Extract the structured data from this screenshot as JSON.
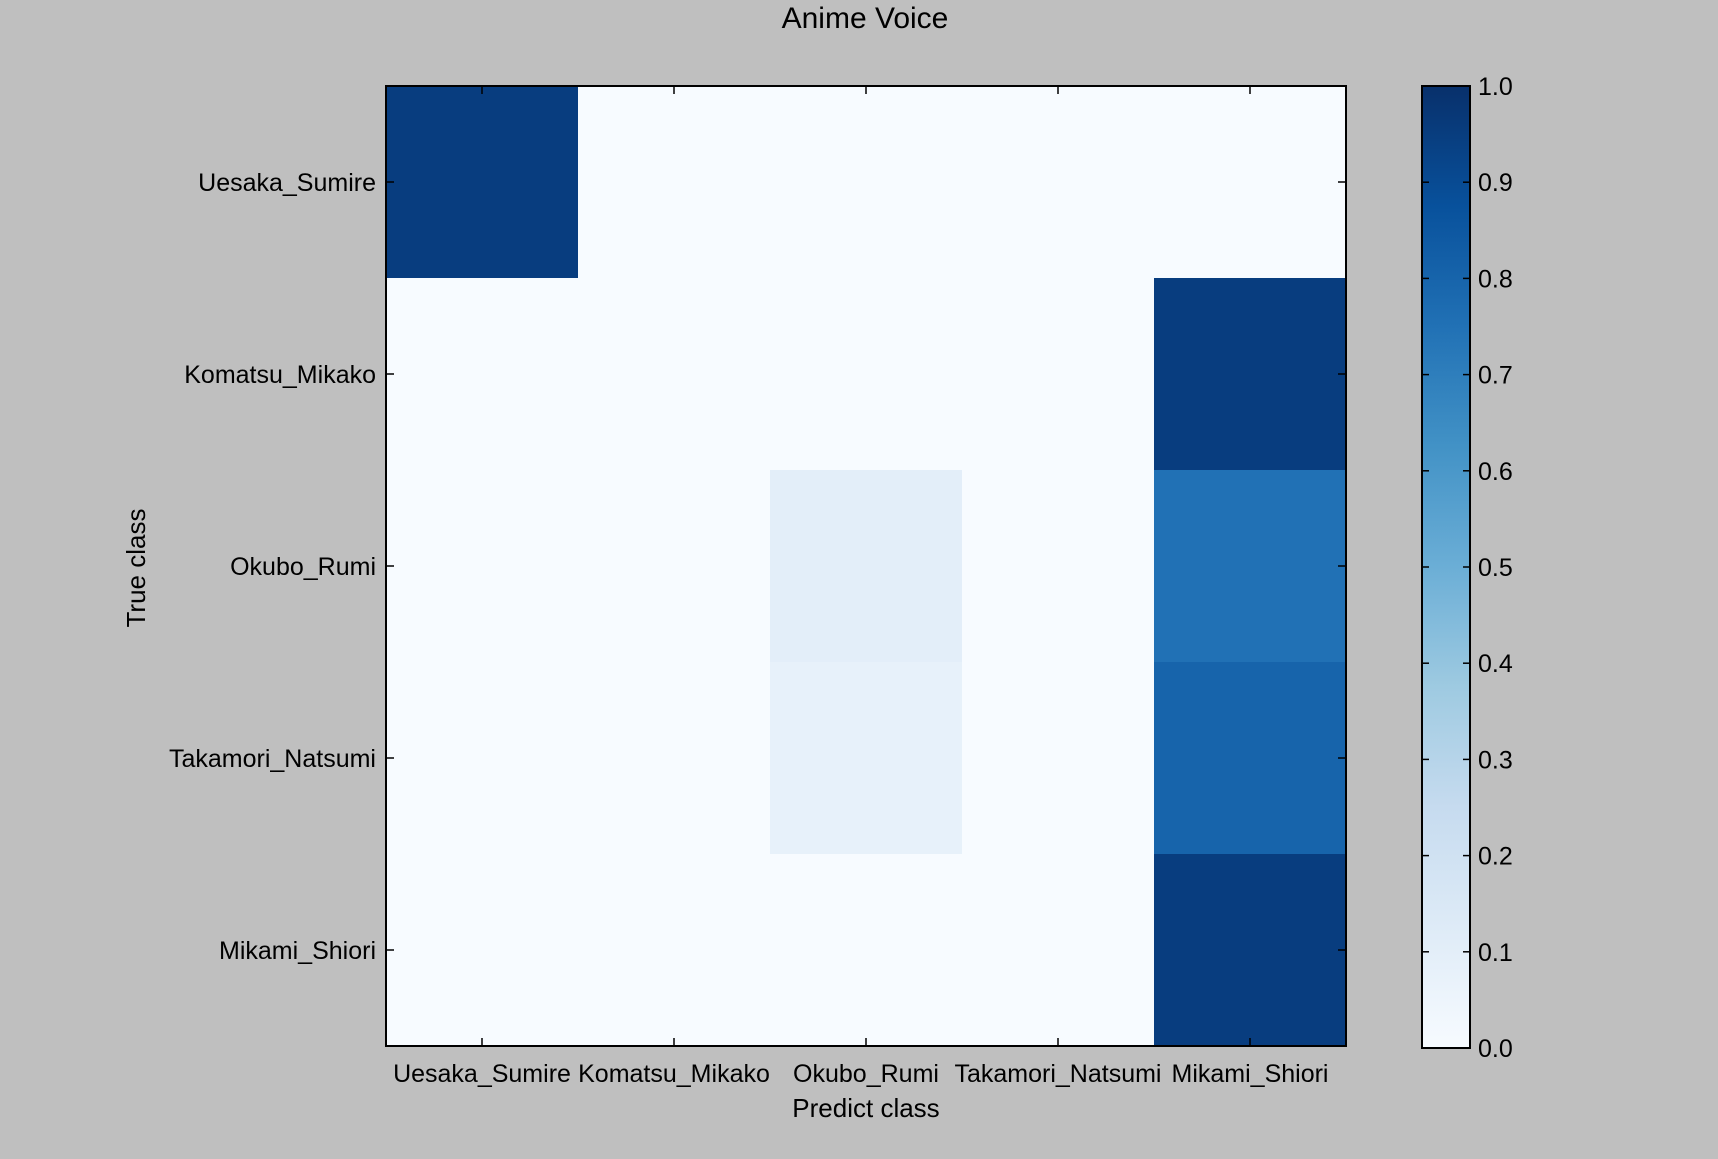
{
  "chart_data": {
    "type": "heatmap",
    "title": "Anime Voice",
    "xlabel": "Predict class",
    "ylabel": "True class",
    "x_categories": [
      "Uesaka_Sumire",
      "Komatsu_Mikako",
      "Okubo_Rumi",
      "Takamori_Natsumi",
      "Mikami_Shiori"
    ],
    "y_categories": [
      "Uesaka_Sumire",
      "Komatsu_Mikako",
      "Okubo_Rumi",
      "Takamori_Natsumi",
      "Mikami_Shiori"
    ],
    "values": [
      [
        0.95,
        0.0,
        0.0,
        0.0,
        0.0
      ],
      [
        0.0,
        0.0,
        0.0,
        0.0,
        0.95
      ],
      [
        0.0,
        0.0,
        0.1,
        0.0,
        0.75
      ],
      [
        0.0,
        0.0,
        0.08,
        0.0,
        0.8
      ],
      [
        0.0,
        0.0,
        0.0,
        0.0,
        0.95
      ]
    ],
    "colorbar": {
      "min": 0.0,
      "max": 1.0,
      "ticks": [
        "0.0",
        "0.1",
        "0.2",
        "0.3",
        "0.4",
        "0.5",
        "0.6",
        "0.7",
        "0.8",
        "0.9",
        "1.0"
      ],
      "colormap": "Blues"
    },
    "grid": false
  }
}
